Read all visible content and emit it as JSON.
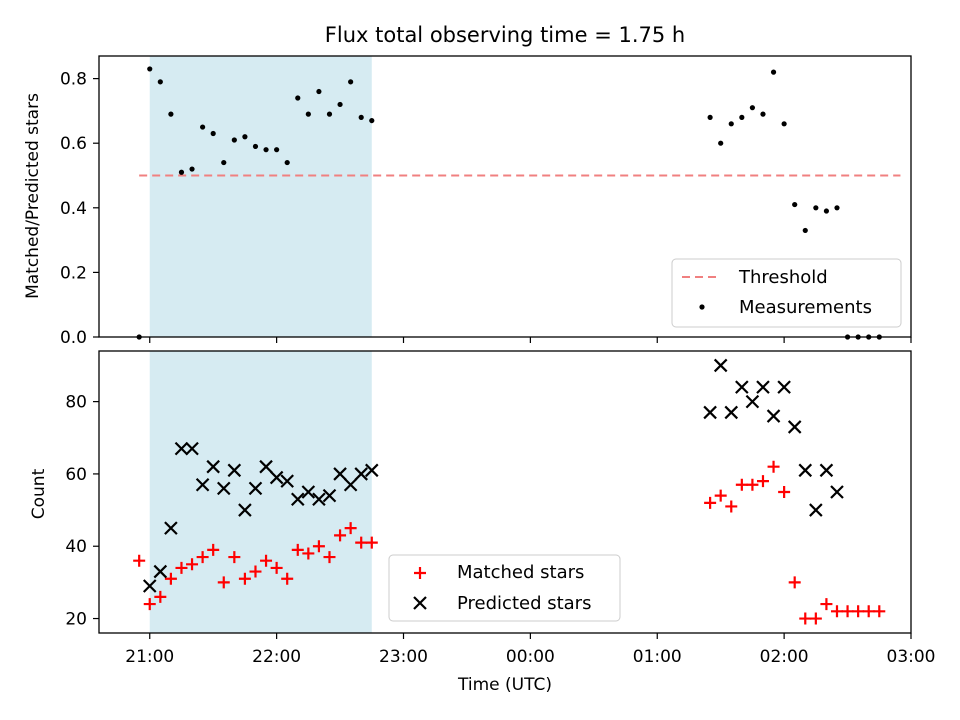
{
  "chart_data": [
    {
      "type": "scatter",
      "title": "Flux total observing time = 1.75 h",
      "ylabel": "Matched/Predicted stars",
      "xlabel": "",
      "ylim": [
        0,
        0.87
      ],
      "yticks": [
        "0.0",
        "0.2",
        "0.4",
        "0.6",
        "0.8"
      ],
      "ytick_values": [
        0,
        0.2,
        0.4,
        0.6,
        0.8
      ],
      "threshold": {
        "name": "Threshold",
        "value": 0.5,
        "x_range": [
          "20:55",
          "02:55"
        ],
        "color": "#f08080"
      },
      "shaded_interval": {
        "x_range": [
          "21:00",
          "22:45"
        ],
        "color": "#add8e6"
      },
      "series": [
        {
          "name": "Measurements",
          "color": "#000000",
          "points": [
            [
              "20:55",
              0.0
            ],
            [
              "21:00",
              0.83
            ],
            [
              "21:05",
              0.79
            ],
            [
              "21:10",
              0.69
            ],
            [
              "21:15",
              0.51
            ],
            [
              "21:20",
              0.52
            ],
            [
              "21:25",
              0.65
            ],
            [
              "21:30",
              0.63
            ],
            [
              "21:35",
              0.54
            ],
            [
              "21:40",
              0.61
            ],
            [
              "21:45",
              0.62
            ],
            [
              "21:50",
              0.59
            ],
            [
              "21:55",
              0.58
            ],
            [
              "22:00",
              0.58
            ],
            [
              "22:05",
              0.54
            ],
            [
              "22:10",
              0.74
            ],
            [
              "22:15",
              0.69
            ],
            [
              "22:20",
              0.76
            ],
            [
              "22:25",
              0.69
            ],
            [
              "22:30",
              0.72
            ],
            [
              "22:35",
              0.79
            ],
            [
              "22:40",
              0.68
            ],
            [
              "22:45",
              0.67
            ],
            [
              "01:25",
              0.68
            ],
            [
              "01:30",
              0.6
            ],
            [
              "01:35",
              0.66
            ],
            [
              "01:40",
              0.68
            ],
            [
              "01:45",
              0.71
            ],
            [
              "01:50",
              0.69
            ],
            [
              "01:55",
              0.82
            ],
            [
              "02:00",
              0.66
            ],
            [
              "02:05",
              0.41
            ],
            [
              "02:10",
              0.33
            ],
            [
              "02:15",
              0.4
            ],
            [
              "02:20",
              0.39
            ],
            [
              "02:25",
              0.4
            ],
            [
              "02:30",
              0.0
            ],
            [
              "02:35",
              0.0
            ],
            [
              "02:40",
              0.0
            ],
            [
              "02:45",
              0.0
            ]
          ]
        }
      ],
      "legend": {
        "placement": "lower-right",
        "entries": [
          "Threshold",
          "Measurements"
        ]
      }
    },
    {
      "type": "scatter",
      "title": "",
      "ylabel": "Count",
      "xlabel": "Time (UTC)",
      "ylim": [
        16,
        94
      ],
      "yticks": [
        "20",
        "40",
        "60",
        "80"
      ],
      "ytick_values": [
        20,
        40,
        60,
        80
      ],
      "xlim": [
        "20:36",
        "03:00"
      ],
      "xticks": [
        "21:00",
        "22:00",
        "23:00",
        "00:00",
        "01:00",
        "02:00",
        "03:00"
      ],
      "shaded_interval": {
        "x_range": [
          "21:00",
          "22:45"
        ],
        "color": "#add8e6"
      },
      "series": [
        {
          "name": "Matched stars",
          "marker": "plus",
          "color": "#ff0000",
          "points": [
            [
              "20:55",
              36
            ],
            [
              "21:00",
              24
            ],
            [
              "21:05",
              26
            ],
            [
              "21:10",
              31
            ],
            [
              "21:15",
              34
            ],
            [
              "21:20",
              35
            ],
            [
              "21:25",
              37
            ],
            [
              "21:30",
              39
            ],
            [
              "21:35",
              30
            ],
            [
              "21:40",
              37
            ],
            [
              "21:45",
              31
            ],
            [
              "21:50",
              33
            ],
            [
              "21:55",
              36
            ],
            [
              "22:00",
              34
            ],
            [
              "22:05",
              31
            ],
            [
              "22:10",
              39
            ],
            [
              "22:15",
              38
            ],
            [
              "22:20",
              40
            ],
            [
              "22:25",
              37
            ],
            [
              "22:30",
              43
            ],
            [
              "22:35",
              45
            ],
            [
              "22:40",
              41
            ],
            [
              "22:45",
              41
            ],
            [
              "01:25",
              52
            ],
            [
              "01:30",
              54
            ],
            [
              "01:35",
              51
            ],
            [
              "01:40",
              57
            ],
            [
              "01:45",
              57
            ],
            [
              "01:50",
              58
            ],
            [
              "01:55",
              62
            ],
            [
              "02:00",
              55
            ],
            [
              "02:05",
              30
            ],
            [
              "02:10",
              20
            ],
            [
              "02:15",
              20
            ],
            [
              "02:20",
              24
            ],
            [
              "02:25",
              22
            ],
            [
              "02:30",
              22
            ],
            [
              "02:35",
              22
            ],
            [
              "02:40",
              22
            ],
            [
              "02:45",
              22
            ]
          ]
        },
        {
          "name": "Predicted stars",
          "marker": "x",
          "color": "#000000",
          "points": [
            [
              "21:00",
              29
            ],
            [
              "21:05",
              33
            ],
            [
              "21:10",
              45
            ],
            [
              "21:15",
              67
            ],
            [
              "21:20",
              67
            ],
            [
              "21:25",
              57
            ],
            [
              "21:30",
              62
            ],
            [
              "21:35",
              56
            ],
            [
              "21:40",
              61
            ],
            [
              "21:45",
              50
            ],
            [
              "21:50",
              56
            ],
            [
              "21:55",
              62
            ],
            [
              "22:00",
              59
            ],
            [
              "22:05",
              58
            ],
            [
              "22:10",
              53
            ],
            [
              "22:15",
              55
            ],
            [
              "22:20",
              53
            ],
            [
              "22:25",
              54
            ],
            [
              "22:30",
              60
            ],
            [
              "22:35",
              57
            ],
            [
              "22:40",
              60
            ],
            [
              "22:45",
              61
            ],
            [
              "01:25",
              77
            ],
            [
              "01:30",
              90
            ],
            [
              "01:35",
              77
            ],
            [
              "01:40",
              84
            ],
            [
              "01:45",
              80
            ],
            [
              "01:50",
              84
            ],
            [
              "01:55",
              76
            ],
            [
              "02:00",
              84
            ],
            [
              "02:05",
              73
            ],
            [
              "02:10",
              61
            ],
            [
              "02:15",
              50
            ],
            [
              "02:20",
              61
            ],
            [
              "02:25",
              55
            ]
          ]
        }
      ],
      "legend": {
        "placement": "lower-center",
        "entries": [
          "Matched stars",
          "Predicted stars"
        ]
      }
    }
  ]
}
